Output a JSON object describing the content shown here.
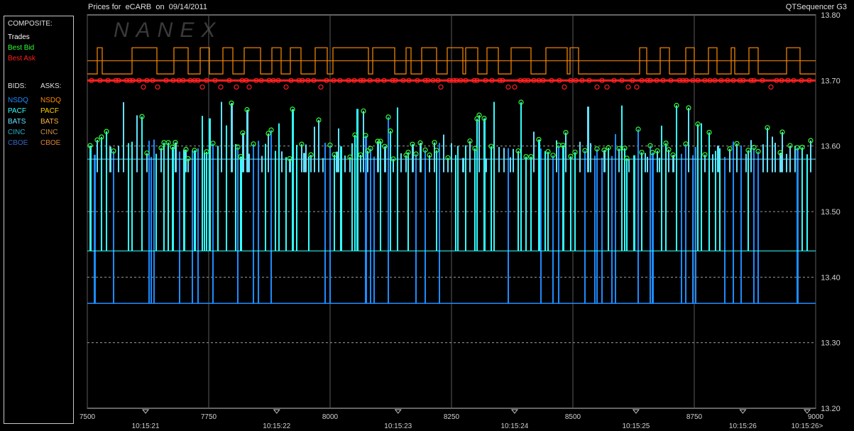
{
  "header": {
    "title": "Prices for  eCARB  on  09/14/2011",
    "app": "QTSequencer G3"
  },
  "legend": {
    "composite_heading": "COMPOSITE:",
    "composite": [
      {
        "label": "Trades",
        "color": "#ffffff"
      },
      {
        "label": "Best Bid",
        "color": "#33ff33"
      },
      {
        "label": "Best Ask",
        "color": "#ff2020"
      }
    ],
    "bids_heading": "BIDS:",
    "asks_heading": "ASKS:",
    "bids": [
      {
        "label": "NSDQ",
        "color": "#1e8cff"
      },
      {
        "label": "PACF",
        "color": "#33ffff"
      },
      {
        "label": "BATS",
        "color": "#66e0ff"
      },
      {
        "label": "CINC",
        "color": "#2ab0c8"
      },
      {
        "label": "CBOE",
        "color": "#3366cc"
      }
    ],
    "asks": [
      {
        "label": "NSDQ",
        "color": "#ff8c00"
      },
      {
        "label": "PACF",
        "color": "#ffd000"
      },
      {
        "label": "BATS",
        "color": "#ffb347"
      },
      {
        "label": "CINC",
        "color": "#c89040"
      },
      {
        "label": "CBOE",
        "color": "#e08030"
      }
    ]
  },
  "watermark": "NANEX",
  "chart_data": {
    "type": "line",
    "title": "Prices for  eCARB  on  09/14/2011",
    "ylim": [
      13.2,
      13.8
    ],
    "y_ticks": [
      "13.80",
      "13.70",
      "13.60",
      "13.50",
      "13.40",
      "13.30",
      "13.20"
    ],
    "y_tick_values": [
      13.8,
      13.7,
      13.6,
      13.5,
      13.4,
      13.3,
      13.2
    ],
    "xlim": [
      7500,
      9000
    ],
    "x_ticks": [
      "7500",
      "7750",
      "8000",
      "8250",
      "8500",
      "8750",
      "9000"
    ],
    "x_tick_values": [
      7500,
      7750,
      8000,
      8250,
      8500,
      8750,
      9000
    ],
    "time_ticks": [
      "10:15:21",
      "10:15:22",
      "10:15:23",
      "10:15:24",
      "10:15:25",
      "10:15:26",
      "10:15:26>"
    ],
    "time_tick_positions": [
      7620,
      7890,
      8140,
      8380,
      8630,
      8850,
      9000
    ],
    "grid": true,
    "levels": {
      "ask_high": 13.75,
      "ask_mid": 13.73,
      "ask_low": 13.71,
      "best_ask": 13.7,
      "best_bid_top": 13.68,
      "bid_typical": 13.59,
      "bid_alt": 13.58,
      "bid_pacf_low": 13.44,
      "bid_nsdq_low": 13.36
    },
    "series": [
      {
        "name": "NSDQ",
        "side": "ask",
        "color": "#ff8c00"
      },
      {
        "name": "NSDQ",
        "side": "bid",
        "color": "#1e8cff"
      },
      {
        "name": "PACF",
        "side": "bid",
        "color": "#33ffff"
      },
      {
        "name": "BATS",
        "side": "bid",
        "color": "#66e0ff"
      },
      {
        "name": "Best Bid",
        "color": "#33ff33"
      },
      {
        "name": "Best Ask",
        "color": "#ff2020"
      }
    ]
  }
}
